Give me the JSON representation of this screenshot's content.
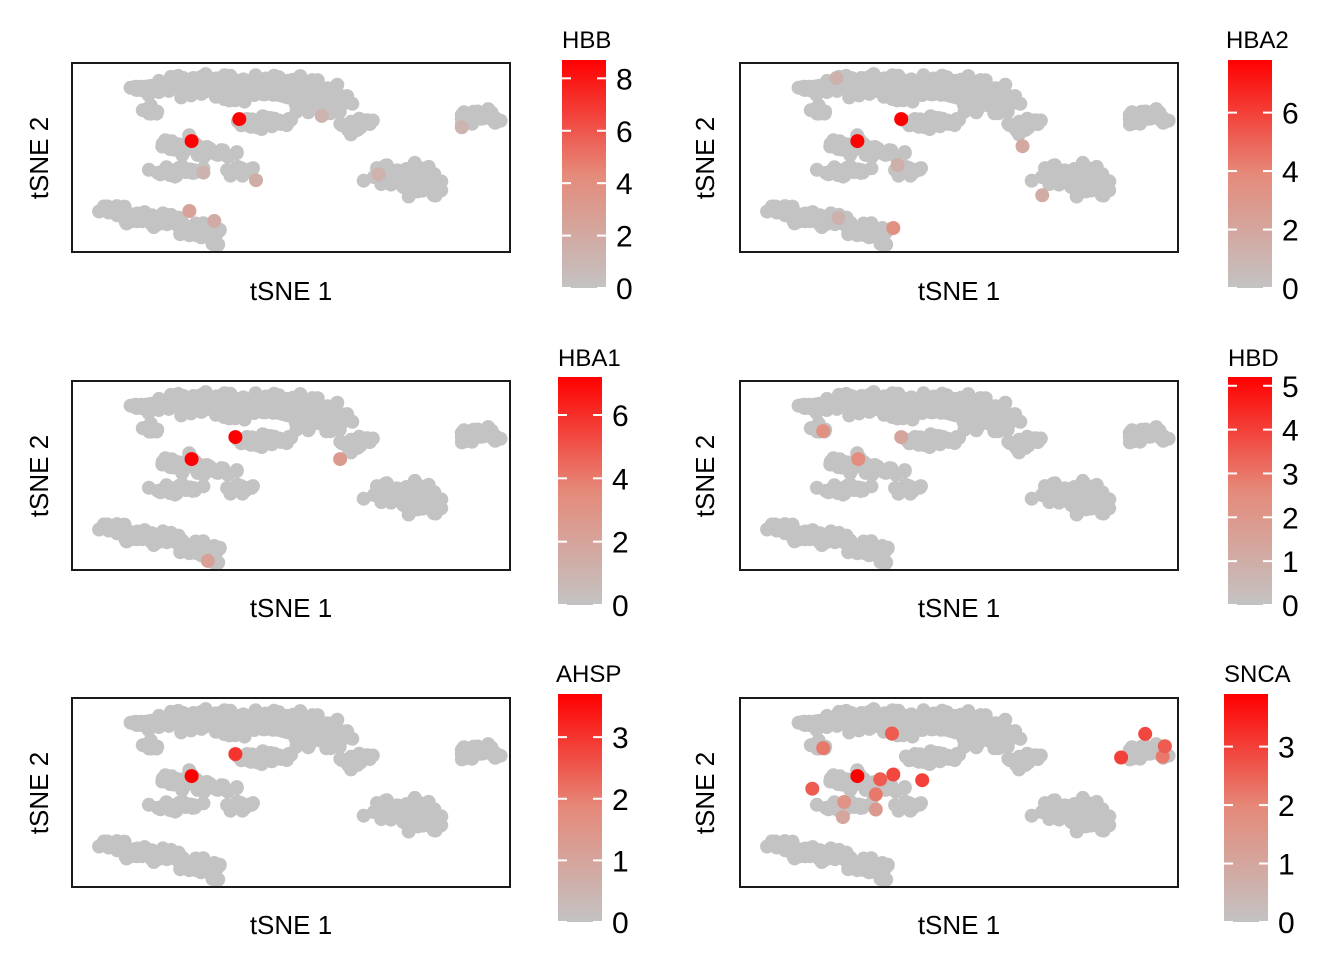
{
  "colors": {
    "low": "#c3c3c3",
    "high": "#ff0000",
    "frame": "#1a1a1a",
    "background": "#ffffff"
  },
  "chart_data": [
    {
      "type": "scatter",
      "title": "HBB",
      "xlabel": "tSNE 1",
      "ylabel": "tSNE 2",
      "legend_max": 8.7,
      "legend_ticks": [
        0,
        2,
        4,
        6,
        8
      ],
      "highlights": [
        {
          "x": 0.382,
          "y": 0.703,
          "v": 8.6
        },
        {
          "x": 0.273,
          "y": 0.587,
          "v": 8.7
        },
        {
          "x": 0.268,
          "y": 0.217,
          "v": 2.5
        },
        {
          "x": 0.325,
          "y": 0.164,
          "v": 1.8
        },
        {
          "x": 0.42,
          "y": 0.38,
          "v": 1.6
        },
        {
          "x": 0.3,
          "y": 0.42,
          "v": 1.2
        },
        {
          "x": 0.7,
          "y": 0.41,
          "v": 1.3
        },
        {
          "x": 0.89,
          "y": 0.66,
          "v": 1.1
        },
        {
          "x": 0.57,
          "y": 0.72,
          "v": 1.2
        }
      ]
    },
    {
      "type": "scatter",
      "title": "HBA2",
      "xlabel": "tSNE 1",
      "ylabel": "tSNE 2",
      "legend_max": 7.8,
      "legend_ticks": [
        0,
        2,
        4,
        6
      ],
      "highlights": [
        {
          "x": 0.368,
          "y": 0.703,
          "v": 7.8
        },
        {
          "x": 0.268,
          "y": 0.587,
          "v": 7.8
        },
        {
          "x": 0.35,
          "y": 0.127,
          "v": 3.5
        },
        {
          "x": 0.645,
          "y": 0.56,
          "v": 1.9
        },
        {
          "x": 0.69,
          "y": 0.3,
          "v": 1.6
        },
        {
          "x": 0.36,
          "y": 0.46,
          "v": 1.4
        },
        {
          "x": 0.225,
          "y": 0.18,
          "v": 1.2
        },
        {
          "x": 0.22,
          "y": 0.92,
          "v": 1.2
        }
      ]
    },
    {
      "type": "scatter",
      "title": "HBA1",
      "xlabel": "tSNE 1",
      "ylabel": "tSNE 2",
      "legend_max": 7.2,
      "legend_ticks": [
        0,
        2,
        4,
        6
      ],
      "highlights": [
        {
          "x": 0.373,
          "y": 0.703,
          "v": 7.2
        },
        {
          "x": 0.273,
          "y": 0.587,
          "v": 7.2
        },
        {
          "x": 0.612,
          "y": 0.587,
          "v": 2.6
        },
        {
          "x": 0.31,
          "y": 0.048,
          "v": 2.2
        }
      ]
    },
    {
      "type": "scatter",
      "title": "HBD",
      "xlabel": "tSNE 1",
      "ylabel": "tSNE 2",
      "legend_max": 5.2,
      "legend_ticks": [
        0,
        1,
        2,
        3,
        4,
        5
      ],
      "highlights": [
        {
          "x": 0.27,
          "y": 0.587,
          "v": 2.5
        },
        {
          "x": 0.19,
          "y": 0.735,
          "v": 2.3
        },
        {
          "x": 0.368,
          "y": 0.703,
          "v": 1.4
        }
      ]
    },
    {
      "type": "scatter",
      "title": "AHSP",
      "xlabel": "tSNE 1",
      "ylabel": "tSNE 2",
      "legend_max": 3.7,
      "legend_ticks": [
        0,
        1,
        2,
        3
      ],
      "highlights": [
        {
          "x": 0.273,
          "y": 0.587,
          "v": 3.7
        },
        {
          "x": 0.373,
          "y": 0.703,
          "v": 3.0
        }
      ]
    },
    {
      "type": "scatter",
      "title": "SNCA",
      "xlabel": "tSNE 1",
      "ylabel": "tSNE 2",
      "legend_max": 3.9,
      "legend_ticks": [
        0,
        1,
        2,
        3
      ],
      "highlights": [
        {
          "x": 0.268,
          "y": 0.587,
          "v": 3.9
        },
        {
          "x": 0.19,
          "y": 0.735,
          "v": 2.2
        },
        {
          "x": 0.347,
          "y": 0.812,
          "v": 2.6
        },
        {
          "x": 0.925,
          "y": 0.81,
          "v": 2.9
        },
        {
          "x": 0.97,
          "y": 0.745,
          "v": 2.6
        },
        {
          "x": 0.965,
          "y": 0.69,
          "v": 2.2
        },
        {
          "x": 0.87,
          "y": 0.685,
          "v": 3.0
        },
        {
          "x": 0.32,
          "y": 0.57,
          "v": 2.6
        },
        {
          "x": 0.35,
          "y": 0.595,
          "v": 2.9
        },
        {
          "x": 0.416,
          "y": 0.565,
          "v": 3.0
        },
        {
          "x": 0.31,
          "y": 0.49,
          "v": 2.2
        },
        {
          "x": 0.165,
          "y": 0.52,
          "v": 2.6
        },
        {
          "x": 0.238,
          "y": 0.45,
          "v": 1.6
        },
        {
          "x": 0.31,
          "y": 0.41,
          "v": 1.4
        },
        {
          "x": 0.235,
          "y": 0.37,
          "v": 1.0
        }
      ]
    }
  ]
}
